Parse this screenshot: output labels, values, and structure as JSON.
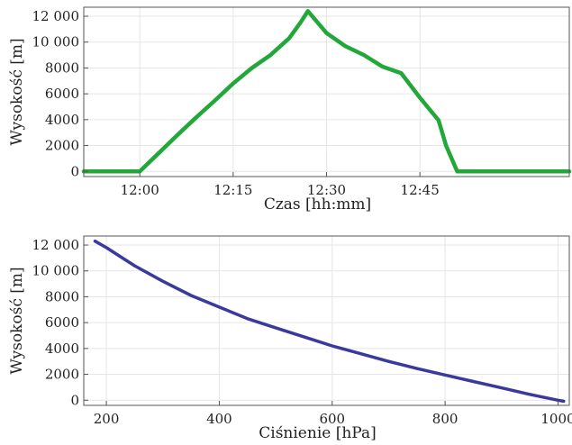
{
  "chart_data": [
    {
      "type": "line",
      "xlabel": "Czas [hh:mm]",
      "ylabel": "Wysokość [m]",
      "xlim": [
        11.85,
        13.15
      ],
      "ylim": [
        -400,
        12700
      ],
      "xticks": [
        12.0,
        12.25,
        12.5,
        12.75
      ],
      "xtick_labels": [
        "12:00",
        "12:15",
        "12:30",
        "12:45"
      ],
      "yticks": [
        0,
        2000,
        4000,
        6000,
        8000,
        10000,
        12000
      ],
      "ytick_labels": [
        "0",
        "2000",
        "4000",
        "6000",
        "8000",
        "10 000",
        "12 000"
      ],
      "grid": true,
      "series": [
        {
          "color": "#22a83a",
          "x": [
            11.85,
            12.0,
            12.05,
            12.1,
            12.15,
            12.2,
            12.25,
            12.3,
            12.35,
            12.4,
            12.43,
            12.45,
            12.5,
            12.55,
            12.6,
            12.65,
            12.7,
            12.75,
            12.8,
            12.82,
            12.85,
            12.9,
            12.95,
            13.0,
            13.05,
            13.1,
            13.15
          ],
          "y": [
            0,
            0,
            1400,
            2800,
            4150,
            5450,
            6800,
            8000,
            9000,
            10300,
            11500,
            12400,
            10700,
            9700,
            9000,
            8100,
            7600,
            5700,
            3950,
            2000,
            0,
            0,
            0,
            0,
            0,
            0,
            0
          ]
        }
      ]
    },
    {
      "type": "line",
      "xlabel": "Ciśnienie [hPa]",
      "ylabel": "Wysokość [m]",
      "xlim": [
        160,
        1020
      ],
      "ylim": [
        -400,
        12700
      ],
      "xticks": [
        200,
        400,
        600,
        800,
        1000
      ],
      "xtick_labels": [
        "200",
        "400",
        "600",
        "800",
        "1000"
      ],
      "yticks": [
        0,
        2000,
        4000,
        6000,
        8000,
        10000,
        12000
      ],
      "ytick_labels": [
        "0",
        "2000",
        "4000",
        "6000",
        "8000",
        "10 000",
        "12 000"
      ],
      "grid": true,
      "series": [
        {
          "color": "#3a3a9e",
          "x": [
            180,
            200,
            250,
            300,
            350,
            400,
            450,
            500,
            550,
            600,
            650,
            700,
            750,
            800,
            850,
            900,
            950,
            1000,
            1010
          ],
          "y": [
            12300,
            11800,
            10400,
            9200,
            8100,
            7200,
            6300,
            5600,
            4900,
            4200,
            3600,
            3000,
            2450,
            1950,
            1450,
            950,
            450,
            0,
            -80
          ]
        }
      ]
    }
  ]
}
